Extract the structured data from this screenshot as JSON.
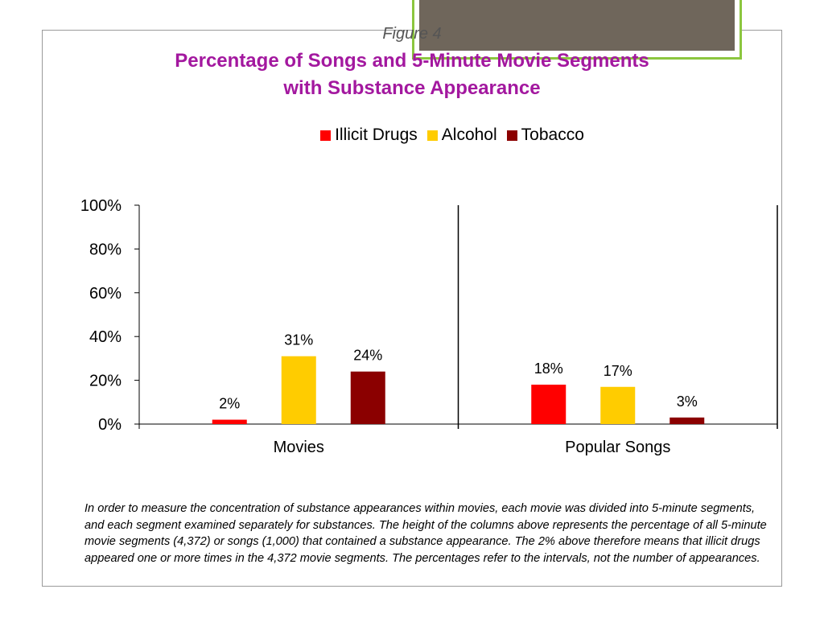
{
  "figure_label": "Figure 4",
  "title_lines": [
    "Percentage of Songs and 5-Minute Movie Segments",
    "with Substance Appearance"
  ],
  "caption": "In order to measure the concentration of substance appearances within movies, each movie was divided into 5-minute segments, and each segment examined separately for substances. The height of the columns above represents the percentage of all 5-minute movie segments (4,372) or songs (1,000) that contained a substance appearance.  The 2% above therefore means that illicit drugs appeared one or more times in the 4,372 movie segments.  The percentages refer to the intervals, not the number of appearances.",
  "chart_data": {
    "type": "bar",
    "title": "Percentage of Songs and 5-Minute Movie Segments with Substance Appearance",
    "categories": [
      "Movies",
      "Popular Songs"
    ],
    "series": [
      {
        "name": "Illicit Drugs",
        "color": "#ff0000",
        "values": [
          2,
          18
        ],
        "labels": [
          "2%",
          "18%"
        ]
      },
      {
        "name": "Alcohol",
        "color": "#ffcc00",
        "values": [
          31,
          17
        ],
        "labels": [
          "31%",
          "17%"
        ]
      },
      {
        "name": "Tobacco",
        "color": "#8b0000",
        "values": [
          24,
          3
        ],
        "labels": [
          "24%",
          "3%"
        ]
      }
    ],
    "ylim": [
      0,
      100
    ],
    "yticks": [
      0,
      20,
      40,
      60,
      80,
      100
    ],
    "ytick_labels": [
      "0%",
      "20%",
      "40%",
      "60%",
      "80%",
      "100%"
    ],
    "legend_position": "top",
    "grid": false
  }
}
